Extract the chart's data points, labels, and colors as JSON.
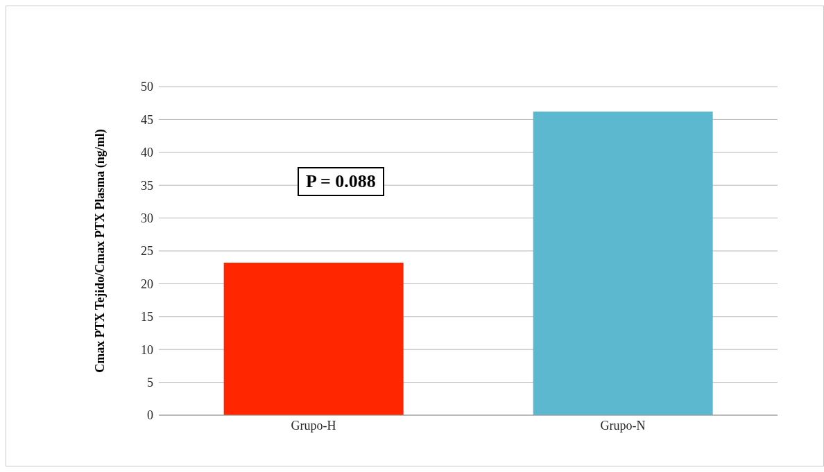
{
  "chart_data": {
    "type": "bar",
    "ylabel": "Cmax PTX Tejido/Cmax PTX Plasma (ng/ml)",
    "categories": [
      "Grupo-H",
      "Grupo-N"
    ],
    "values": [
      23.2,
      46.2
    ],
    "colors": [
      "#ff2600",
      "#5bb8cf"
    ],
    "ylim": [
      0,
      50
    ],
    "yticks": [
      0,
      5,
      10,
      15,
      20,
      25,
      30,
      35,
      40,
      45,
      50
    ],
    "grid": "y",
    "annotations": [
      "P = 0.088"
    ]
  }
}
